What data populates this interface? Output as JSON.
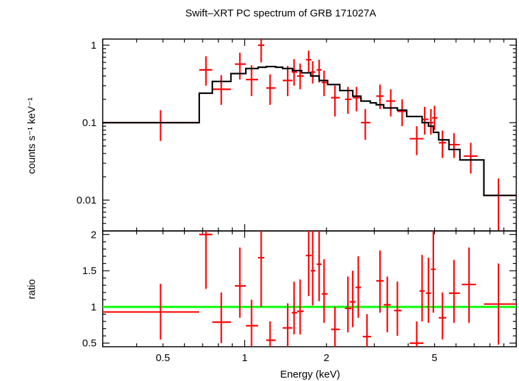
{
  "chart_data": [
    {
      "type": "scatter",
      "title": "Swift–XRT PC spectrum of GRB 171027A",
      "xlabel": "",
      "ylabel": "counts s⁻¹ keV⁻¹",
      "xscale": "log",
      "yscale": "log",
      "xlim": [
        0.3,
        10
      ],
      "ylim": [
        0.004,
        1.2
      ],
      "x_ticks": [],
      "y_ticks": [
        {
          "value": 1,
          "label": "1"
        },
        {
          "value": 0.1,
          "label": "0.1"
        },
        {
          "value": 0.01,
          "label": "0.01"
        }
      ],
      "colors": {
        "data": "#ff0000",
        "model": "#000000"
      },
      "series": [
        {
          "kind": "data-with-errors",
          "points": [
            {
              "x": 0.49,
              "xlo": 0.3,
              "xhi": 0.68,
              "y": 0.1,
              "ylo": 0.058,
              "yhi": 0.145
            },
            {
              "x": 0.72,
              "xlo": 0.68,
              "xhi": 0.76,
              "y": 0.48,
              "ylo": 0.3,
              "yhi": 0.72
            },
            {
              "x": 0.82,
              "xlo": 0.76,
              "xhi": 0.89,
              "y": 0.27,
              "ylo": 0.17,
              "yhi": 0.41
            },
            {
              "x": 0.96,
              "xlo": 0.92,
              "xhi": 1.01,
              "y": 0.57,
              "ylo": 0.36,
              "yhi": 0.8
            },
            {
              "x": 1.06,
              "xlo": 1.01,
              "xhi": 1.12,
              "y": 0.36,
              "ylo": 0.22,
              "yhi": 0.55
            },
            {
              "x": 1.15,
              "xlo": 1.12,
              "xhi": 1.18,
              "y": 1.0,
              "ylo": 0.6,
              "yhi": 1.2
            },
            {
              "x": 1.24,
              "xlo": 1.2,
              "xhi": 1.3,
              "y": 0.28,
              "ylo": 0.17,
              "yhi": 0.42
            },
            {
              "x": 1.44,
              "xlo": 1.38,
              "xhi": 1.5,
              "y": 0.35,
              "ylo": 0.22,
              "yhi": 0.54
            },
            {
              "x": 1.52,
              "xlo": 1.49,
              "xhi": 1.56,
              "y": 0.45,
              "ylo": 0.3,
              "yhi": 0.66
            },
            {
              "x": 1.6,
              "xlo": 1.56,
              "xhi": 1.65,
              "y": 0.4,
              "ylo": 0.27,
              "yhi": 0.58
            },
            {
              "x": 1.72,
              "xlo": 1.68,
              "xhi": 1.76,
              "y": 0.65,
              "ylo": 0.45,
              "yhi": 0.85
            },
            {
              "x": 1.78,
              "xlo": 1.75,
              "xhi": 1.82,
              "y": 0.45,
              "ylo": 0.32,
              "yhi": 0.62
            },
            {
              "x": 1.88,
              "xlo": 1.84,
              "xhi": 1.92,
              "y": 0.48,
              "ylo": 0.33,
              "yhi": 0.65
            },
            {
              "x": 1.96,
              "xlo": 1.92,
              "xhi": 2.02,
              "y": 0.33,
              "ylo": 0.22,
              "yhi": 0.47
            },
            {
              "x": 2.15,
              "xlo": 2.08,
              "xhi": 2.24,
              "y": 0.21,
              "ylo": 0.12,
              "yhi": 0.3
            },
            {
              "x": 2.4,
              "xlo": 2.34,
              "xhi": 2.47,
              "y": 0.2,
              "ylo": 0.13,
              "yhi": 0.29
            },
            {
              "x": 2.58,
              "xlo": 2.5,
              "xhi": 2.66,
              "y": 0.21,
              "ylo": 0.14,
              "yhi": 0.29
            },
            {
              "x": 2.78,
              "xlo": 2.68,
              "xhi": 2.9,
              "y": 0.1,
              "ylo": 0.06,
              "yhi": 0.15
            },
            {
              "x": 3.15,
              "xlo": 3.05,
              "xhi": 3.25,
              "y": 0.22,
              "ylo": 0.15,
              "yhi": 0.31
            },
            {
              "x": 3.45,
              "xlo": 3.32,
              "xhi": 3.58,
              "y": 0.19,
              "ylo": 0.12,
              "yhi": 0.27
            },
            {
              "x": 3.8,
              "xlo": 3.65,
              "xhi": 3.95,
              "y": 0.14,
              "ylo": 0.09,
              "yhi": 0.2
            },
            {
              "x": 4.3,
              "xlo": 4.05,
              "xhi": 4.55,
              "y": 0.062,
              "ylo": 0.038,
              "yhi": 0.09
            },
            {
              "x": 4.6,
              "xlo": 4.5,
              "xhi": 4.75,
              "y": 0.11,
              "ylo": 0.07,
              "yhi": 0.16
            },
            {
              "x": 4.85,
              "xlo": 4.75,
              "xhi": 4.95,
              "y": 0.1,
              "ylo": 0.07,
              "yhi": 0.15
            },
            {
              "x": 5.0,
              "xlo": 4.9,
              "xhi": 5.12,
              "y": 0.115,
              "ylo": 0.08,
              "yhi": 0.165
            },
            {
              "x": 5.35,
              "xlo": 5.18,
              "xhi": 5.52,
              "y": 0.055,
              "ylo": 0.035,
              "yhi": 0.079
            },
            {
              "x": 5.9,
              "xlo": 5.65,
              "xhi": 6.2,
              "y": 0.052,
              "ylo": 0.035,
              "yhi": 0.073
            },
            {
              "x": 6.8,
              "xlo": 6.4,
              "xhi": 7.2,
              "y": 0.037,
              "ylo": 0.022,
              "yhi": 0.055
            },
            {
              "x": 8.6,
              "xlo": 7.6,
              "xhi": 10.0,
              "y": 0.0115,
              "ylo": 0.004,
              "yhi": 0.019
            }
          ]
        },
        {
          "kind": "model-step",
          "edges": [
            0.3,
            0.68,
            0.76,
            0.89,
            1.01,
            1.12,
            1.2,
            1.3,
            1.38,
            1.5,
            1.62,
            1.75,
            1.88,
            2.02,
            2.24,
            2.5,
            2.68,
            2.9,
            3.05,
            3.25,
            3.65,
            3.95,
            4.5,
            4.75,
            4.95,
            5.18,
            5.65,
            6.2,
            7.6,
            10.0
          ],
          "values": [
            0.1,
            0.24,
            0.34,
            0.43,
            0.5,
            0.52,
            0.53,
            0.52,
            0.5,
            0.47,
            0.44,
            0.4,
            0.35,
            0.31,
            0.26,
            0.22,
            0.19,
            0.18,
            0.17,
            0.155,
            0.145,
            0.12,
            0.1,
            0.09,
            0.075,
            0.06,
            0.045,
            0.033,
            0.0115
          ]
        }
      ]
    },
    {
      "type": "scatter",
      "title": "",
      "xlabel": "Energy (keV)",
      "ylabel": "ratio",
      "xscale": "log",
      "yscale": "linear",
      "xlim": [
        0.3,
        10
      ],
      "ylim": [
        0.45,
        2.05
      ],
      "x_ticks": [
        {
          "value": 0.5,
          "label": "0.5"
        },
        {
          "value": 1,
          "label": "1"
        },
        {
          "value": 2,
          "label": "2"
        },
        {
          "value": 5,
          "label": "5"
        }
      ],
      "y_ticks": [
        {
          "value": 0.5,
          "label": "0.5"
        },
        {
          "value": 1,
          "label": "1"
        },
        {
          "value": 1.5,
          "label": "1.5"
        },
        {
          "value": 2,
          "label": "2"
        }
      ],
      "reference_line": {
        "y": 1,
        "color": "#00ff00"
      },
      "colors": {
        "data": "#ff0000"
      },
      "series": [
        {
          "kind": "data-with-errors",
          "points": [
            {
              "x": 0.49,
              "xlo": 0.3,
              "xhi": 0.68,
              "y": 0.93,
              "ylo": 0.55,
              "yhi": 1.32
            },
            {
              "x": 0.72,
              "xlo": 0.68,
              "xhi": 0.76,
              "y": 2.0,
              "ylo": 1.25,
              "yhi": 2.05
            },
            {
              "x": 0.82,
              "xlo": 0.76,
              "xhi": 0.89,
              "y": 0.79,
              "ylo": 0.5,
              "yhi": 1.2
            },
            {
              "x": 0.96,
              "xlo": 0.92,
              "xhi": 1.01,
              "y": 1.29,
              "ylo": 0.85,
              "yhi": 1.82
            },
            {
              "x": 1.06,
              "xlo": 1.01,
              "xhi": 1.12,
              "y": 0.74,
              "ylo": 0.46,
              "yhi": 1.1
            },
            {
              "x": 1.15,
              "xlo": 1.12,
              "xhi": 1.18,
              "y": 1.68,
              "ylo": 1.0,
              "yhi": 2.05
            },
            {
              "x": 1.24,
              "xlo": 1.2,
              "xhi": 1.3,
              "y": 0.54,
              "ylo": 0.45,
              "yhi": 0.8
            },
            {
              "x": 1.44,
              "xlo": 1.38,
              "xhi": 1.5,
              "y": 0.71,
              "ylo": 0.45,
              "yhi": 1.05
            },
            {
              "x": 1.52,
              "xlo": 1.49,
              "xhi": 1.56,
              "y": 0.92,
              "ylo": 0.62,
              "yhi": 1.35
            },
            {
              "x": 1.6,
              "xlo": 1.56,
              "xhi": 1.65,
              "y": 0.94,
              "ylo": 0.62,
              "yhi": 1.38
            },
            {
              "x": 1.72,
              "xlo": 1.68,
              "xhi": 1.76,
              "y": 1.71,
              "ylo": 1.15,
              "yhi": 2.05
            },
            {
              "x": 1.78,
              "xlo": 1.75,
              "xhi": 1.82,
              "y": 1.5,
              "ylo": 1.02,
              "yhi": 2.05
            },
            {
              "x": 1.88,
              "xlo": 1.84,
              "xhi": 1.92,
              "y": 1.59,
              "ylo": 1.08,
              "yhi": 2.05
            },
            {
              "x": 1.96,
              "xlo": 1.92,
              "xhi": 2.02,
              "y": 1.18,
              "ylo": 0.78,
              "yhi": 1.66
            },
            {
              "x": 2.15,
              "xlo": 2.08,
              "xhi": 2.24,
              "y": 0.69,
              "ylo": 0.45,
              "yhi": 1.0
            },
            {
              "x": 2.4,
              "xlo": 2.34,
              "xhi": 2.47,
              "y": 0.98,
              "ylo": 0.65,
              "yhi": 1.42
            },
            {
              "x": 2.5,
              "xlo": 2.44,
              "xhi": 2.56,
              "y": 1.07,
              "ylo": 0.72,
              "yhi": 1.5
            },
            {
              "x": 2.62,
              "xlo": 2.56,
              "xhi": 2.68,
              "y": 1.27,
              "ylo": 0.85,
              "yhi": 1.7
            },
            {
              "x": 2.82,
              "xlo": 2.72,
              "xhi": 2.92,
              "y": 0.59,
              "ylo": 0.45,
              "yhi": 0.9
            },
            {
              "x": 3.15,
              "xlo": 3.05,
              "xhi": 3.25,
              "y": 1.36,
              "ylo": 0.92,
              "yhi": 1.78
            },
            {
              "x": 3.35,
              "xlo": 3.25,
              "xhi": 3.45,
              "y": 1.03,
              "ylo": 0.65,
              "yhi": 1.42
            },
            {
              "x": 3.65,
              "xlo": 3.55,
              "xhi": 3.78,
              "y": 0.95,
              "ylo": 0.6,
              "yhi": 1.35
            },
            {
              "x": 4.3,
              "xlo": 4.05,
              "xhi": 4.55,
              "y": 0.5,
              "ylo": 0.45,
              "yhi": 0.8
            },
            {
              "x": 4.5,
              "xlo": 4.4,
              "xhi": 4.6,
              "y": 1.22,
              "ylo": 0.8,
              "yhi": 1.72
            },
            {
              "x": 4.75,
              "xlo": 4.65,
              "xhi": 4.85,
              "y": 1.19,
              "ylo": 0.78,
              "yhi": 1.68
            },
            {
              "x": 4.95,
              "xlo": 4.85,
              "xhi": 5.05,
              "y": 1.52,
              "ylo": 0.92,
              "yhi": 2.05
            },
            {
              "x": 5.35,
              "xlo": 5.18,
              "xhi": 5.52,
              "y": 0.85,
              "ylo": 0.55,
              "yhi": 1.2
            },
            {
              "x": 5.9,
              "xlo": 5.65,
              "xhi": 6.2,
              "y": 1.19,
              "ylo": 0.78,
              "yhi": 1.65
            },
            {
              "x": 6.7,
              "xlo": 6.3,
              "xhi": 7.1,
              "y": 1.31,
              "ylo": 0.78,
              "yhi": 1.82
            },
            {
              "x": 8.6,
              "xlo": 7.6,
              "xhi": 10.0,
              "y": 1.04,
              "ylo": 0.48,
              "yhi": 1.6
            }
          ]
        }
      ]
    }
  ]
}
